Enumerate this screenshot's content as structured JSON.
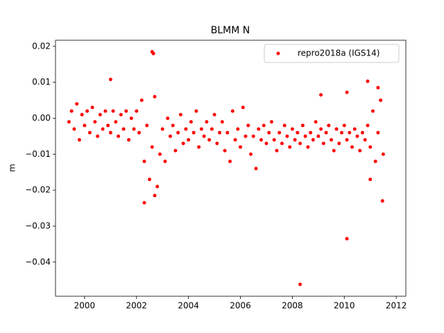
{
  "chart_data": {
    "type": "scatter",
    "title": "BLMM N",
    "y_label": "m",
    "legend": "upper right",
    "xlim": [
      1998.88,
      2012.37
    ],
    "ylim": [
      -0.0495,
      0.0217
    ],
    "xticks": [
      2000,
      2002,
      2004,
      2006,
      2008,
      2010,
      2012
    ],
    "yticks": [
      {
        "value": 0.02,
        "label": "0.02"
      },
      {
        "value": 0.01,
        "label": "0.01"
      },
      {
        "value": 0,
        "label": "0.00"
      },
      {
        "value": -0.01,
        "label": "−0.01"
      },
      {
        "value": -0.02,
        "label": "−0.02"
      },
      {
        "value": -0.03,
        "label": "−0.03"
      },
      {
        "value": -0.04,
        "label": "−0.04"
      }
    ],
    "series": [
      {
        "name": "repro2018a (IGS14)",
        "color": "#ff0000",
        "x": [
          1999.4,
          1999.5,
          1999.6,
          1999.7,
          1999.8,
          1999.9,
          2000.0,
          2000.1,
          2000.2,
          2000.3,
          2000.4,
          2000.5,
          2000.6,
          2000.7,
          2000.8,
          2000.9,
          2001.0,
          2001.1,
          2001.2,
          2001.3,
          2001.4,
          2001.5,
          2001.6,
          2001.7,
          2001.8,
          2001.9,
          2002.0,
          2002.1,
          2002.2,
          2002.3,
          2002.4,
          2002.5,
          2002.6,
          2002.7,
          2002.8,
          2002.9,
          2003.0,
          2003.1,
          2003.2,
          2003.3,
          2003.4,
          2003.5,
          2003.6,
          2003.7,
          2003.8,
          2003.9,
          2004.0,
          2004.1,
          2004.2,
          2004.3,
          2004.4,
          2004.5,
          2004.6,
          2004.7,
          2004.8,
          2004.9,
          2005.0,
          2005.1,
          2005.2,
          2005.3,
          2005.4,
          2005.5,
          2005.6,
          2005.7,
          2005.8,
          2005.9,
          2006.0,
          2006.1,
          2006.2,
          2006.3,
          2006.4,
          2006.5,
          2006.6,
          2006.7,
          2006.8,
          2006.9,
          2007.0,
          2007.1,
          2007.2,
          2007.3,
          2007.4,
          2007.5,
          2007.6,
          2007.7,
          2007.8,
          2007.9,
          2008.0,
          2008.1,
          2008.2,
          2008.3,
          2008.4,
          2008.5,
          2008.6,
          2008.7,
          2008.8,
          2008.9,
          2009.0,
          2009.1,
          2009.2,
          2009.3,
          2009.4,
          2009.5,
          2009.6,
          2009.7,
          2009.8,
          2009.9,
          2010.0,
          2010.1,
          2010.2,
          2010.3,
          2010.4,
          2010.5,
          2010.6,
          2010.7,
          2010.8,
          2010.9,
          2011.0,
          2011.1,
          2011.2,
          2011.3,
          2011.4,
          2011.5,
          2002.6,
          2002.65,
          2001.0,
          2008.3,
          2010.1,
          2011.47,
          2002.3,
          2010.1,
          2009.1,
          2010.9,
          2011.3,
          2002.7,
          2011.0
        ],
        "values": [
          -0.001,
          0.002,
          -0.003,
          0.004,
          -0.006,
          0.001,
          -0.002,
          0.002,
          -0.004,
          0.003,
          -0.001,
          -0.005,
          0.001,
          -0.003,
          0.002,
          -0.002,
          -0.004,
          0.002,
          -0.001,
          -0.005,
          0.001,
          -0.003,
          0.002,
          -0.006,
          0,
          -0.003,
          0.002,
          -0.004,
          0.005,
          -0.012,
          -0.002,
          -0.017,
          -0.008,
          0.006,
          -0.019,
          -0.01,
          -0.003,
          -0.012,
          0,
          -0.005,
          -0.002,
          -0.009,
          -0.004,
          0.001,
          -0.007,
          -0.003,
          -0.006,
          -0.001,
          -0.004,
          0.002,
          -0.008,
          -0.003,
          -0.005,
          -0.001,
          -0.006,
          -0.003,
          0.001,
          -0.007,
          -0.004,
          -0.001,
          -0.009,
          -0.004,
          -0.012,
          0.002,
          -0.006,
          -0.003,
          -0.008,
          0.003,
          -0.005,
          -0.002,
          -0.01,
          -0.005,
          -0.014,
          -0.003,
          -0.006,
          -0.002,
          -0.007,
          -0.004,
          -0.001,
          -0.006,
          -0.009,
          -0.004,
          -0.007,
          -0.002,
          -0.005,
          -0.008,
          -0.003,
          -0.006,
          -0.004,
          -0.007,
          -0.002,
          -0.005,
          -0.008,
          -0.004,
          -0.006,
          -0.001,
          -0.005,
          -0.003,
          -0.007,
          -0.004,
          -0.002,
          -0.006,
          -0.009,
          -0.003,
          -0.007,
          -0.004,
          -0.002,
          -0.006,
          -0.004,
          -0.008,
          -0.003,
          -0.005,
          -0.009,
          -0.004,
          -0.006,
          -0.002,
          -0.008,
          0.002,
          -0.012,
          -0.004,
          0.005,
          -0.01,
          0.0185,
          0.018,
          0.0108,
          -0.0462,
          -0.0335,
          -0.023,
          -0.0235,
          0.0072,
          0.0065,
          0.0103,
          0.0085,
          -0.0215,
          -0.017
        ]
      }
    ]
  }
}
